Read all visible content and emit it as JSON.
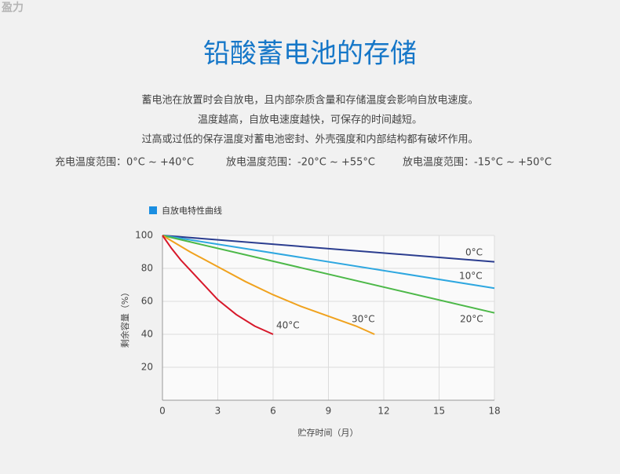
{
  "logo": "盈力",
  "title": "铅酸蓄电池的存储",
  "paragraphs": [
    "蓄电池在放置时会自放电，且内部杂质含量和存储温度会影响自放电速度。",
    "温度越高，自放电速度越快，可保存的时间越短。",
    "过高或过低的保存温度对蓄电池密封、外壳强度和内部结构都有破坏作用。"
  ],
  "ranges": [
    "充电温度范围：0°C ~ +40°C",
    "放电温度范围：-20°C ~ +55°C",
    "放电温度范围：-15°C ~ +50°C"
  ],
  "chart_data": {
    "type": "line",
    "title": "自放电特性曲线",
    "title_color": "#1a8ee1",
    "xlabel": "贮存时间（月）",
    "ylabel": "剩余容量（%）",
    "xlim": [
      0,
      18
    ],
    "xticks": [
      0,
      3,
      6,
      9,
      12,
      15,
      18
    ],
    "ylim": [
      0,
      100
    ],
    "yticks": [
      20,
      40,
      60,
      80,
      100
    ],
    "grid": true,
    "series": [
      {
        "name": "0°C",
        "color": "#2b3d8f",
        "x": [
          0,
          18
        ],
        "values": [
          100,
          84
        ]
      },
      {
        "name": "10°C",
        "color": "#2ea7e0",
        "x": [
          0,
          18
        ],
        "values": [
          100,
          68
        ]
      },
      {
        "name": "20°C",
        "color": "#4cb848",
        "x": [
          0,
          18
        ],
        "values": [
          100,
          53
        ]
      },
      {
        "name": "30°C",
        "color": "#f0a21e",
        "x": [
          0,
          1.5,
          3,
          4.5,
          6,
          7.5,
          9,
          10.5,
          11.5
        ],
        "values": [
          100,
          90,
          81,
          72,
          64,
          57,
          51,
          45,
          40
        ]
      },
      {
        "name": "40°C",
        "color": "#d7182a",
        "x": [
          0,
          0.5,
          1,
          1.5,
          2,
          3,
          4,
          5,
          6
        ],
        "values": [
          100,
          92,
          85,
          79,
          73,
          61,
          52,
          45,
          40
        ]
      }
    ]
  }
}
